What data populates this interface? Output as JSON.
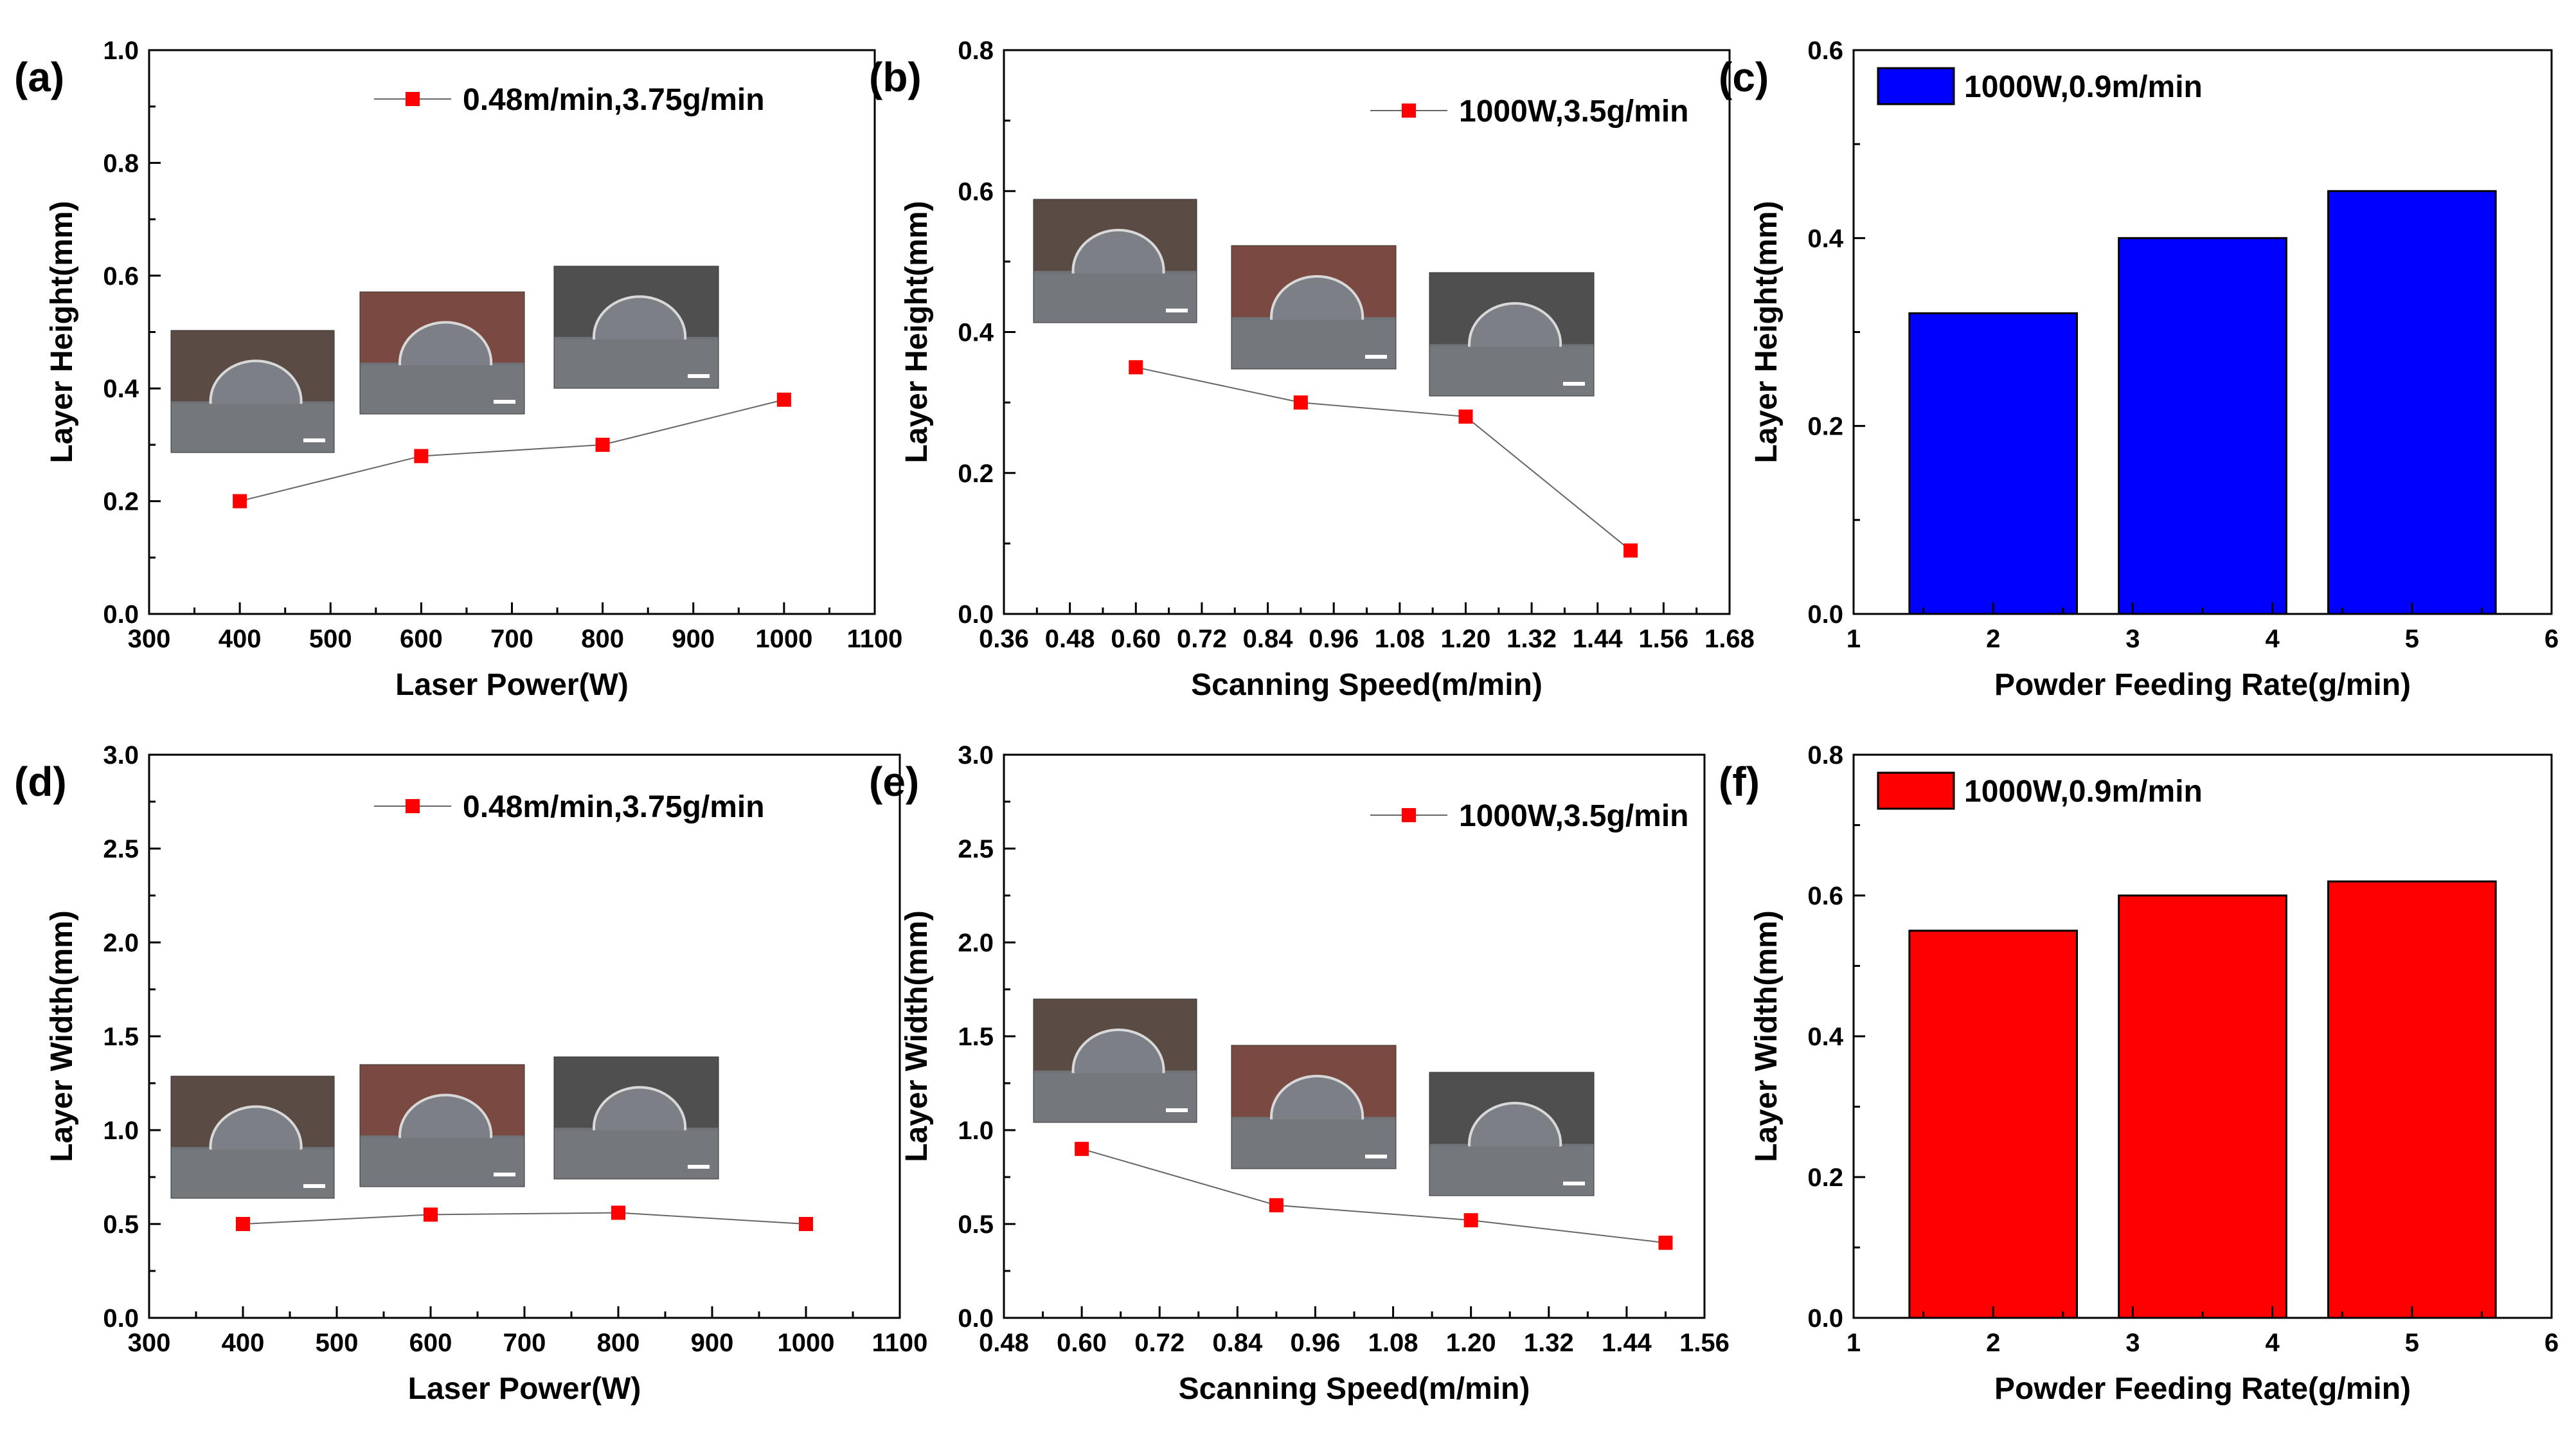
{
  "colors": {
    "marker": "#ff0000",
    "line": "#666666",
    "bar_blue": "#0000ff",
    "bar_red": "#ff0000",
    "axis": "#000000"
  },
  "chart_data": [
    {
      "id": "a",
      "panel_label": "(a)",
      "type": "line",
      "x": [
        400,
        600,
        800,
        1000
      ],
      "y": [
        0.2,
        0.28,
        0.3,
        0.38
      ],
      "series_name": "0.48m/min,3.75g/min",
      "xlabel": "Laser Power(W)",
      "ylabel": "Layer Height(mm)",
      "xlim": [
        300,
        1100
      ],
      "ylim": [
        0,
        1.0
      ],
      "xticks": [
        300,
        400,
        500,
        600,
        700,
        800,
        900,
        1000,
        1100
      ],
      "yticks": [
        0.0,
        0.2,
        0.4,
        0.6,
        0.8,
        1.0
      ],
      "xdec": 0,
      "ydec": 1,
      "legend_position": "top-right",
      "insets": [
        "micrograph-cross-section",
        "micrograph-cross-section",
        "micrograph-cross-section"
      ]
    },
    {
      "id": "b",
      "panel_label": "(b)",
      "type": "line",
      "x": [
        0.6,
        0.9,
        1.2,
        1.5
      ],
      "y": [
        0.35,
        0.3,
        0.28,
        0.09
      ],
      "series_name": "1000W,3.5g/min",
      "xlabel": "Scanning Speed(m/min)",
      "ylabel": "Layer Height(mm)",
      "xlim": [
        0.36,
        1.68
      ],
      "ylim": [
        0,
        0.8
      ],
      "xticks": [
        0.36,
        0.48,
        0.6,
        0.72,
        0.84,
        0.96,
        1.08,
        1.2,
        1.32,
        1.44,
        1.56,
        1.68
      ],
      "yticks": [
        0.0,
        0.2,
        0.4,
        0.6,
        0.8
      ],
      "xdec": 2,
      "ydec": 1,
      "legend_position": "top-right",
      "insets": [
        "micrograph-cross-section",
        "micrograph-cross-section",
        "micrograph-cross-section"
      ]
    },
    {
      "id": "c",
      "panel_label": "(c)",
      "type": "bar",
      "x": [
        2,
        3.5,
        5
      ],
      "y": [
        0.32,
        0.4,
        0.45
      ],
      "bar_half_width": 0.6,
      "series_name": "1000W,0.9m/min",
      "color": "#0000ff",
      "xlabel": "Powder Feeding Rate(g/min)",
      "ylabel": "Layer Height(mm)",
      "xlim": [
        1,
        6
      ],
      "ylim": [
        0,
        0.6
      ],
      "xticks": [
        1,
        2,
        3,
        4,
        5,
        6
      ],
      "yticks": [
        0.0,
        0.2,
        0.4,
        0.6
      ],
      "xdec": 0,
      "ydec": 1,
      "legend_position": "top-left"
    },
    {
      "id": "d",
      "panel_label": "(d)",
      "type": "line",
      "x": [
        400,
        600,
        800,
        1000
      ],
      "y": [
        0.5,
        0.55,
        0.56,
        0.5
      ],
      "series_name": "0.48m/min,3.75g/min",
      "xlabel": "Laser Power(W)",
      "ylabel": "Layer Width(mm)",
      "xlim": [
        300,
        1100
      ],
      "ylim": [
        0,
        3.0
      ],
      "xticks": [
        300,
        400,
        500,
        600,
        700,
        800,
        900,
        1000,
        1100
      ],
      "yticks": [
        0.0,
        0.5,
        1.0,
        1.5,
        2.0,
        2.5,
        3.0
      ],
      "xdec": 0,
      "ydec": 1,
      "legend_position": "top-right",
      "insets": [
        "micrograph-cross-section",
        "micrograph-cross-section",
        "micrograph-cross-section"
      ]
    },
    {
      "id": "e",
      "panel_label": "(e)",
      "type": "line",
      "x": [
        0.6,
        0.9,
        1.2,
        1.5
      ],
      "y": [
        0.9,
        0.6,
        0.52,
        0.4
      ],
      "series_name": "1000W,3.5g/min",
      "xlabel": "Scanning Speed(m/min)",
      "ylabel": "Layer Width(mm)",
      "xlim": [
        0.48,
        1.56
      ],
      "ylim": [
        0,
        3.0
      ],
      "xticks": [
        0.48,
        0.6,
        0.72,
        0.84,
        0.96,
        1.08,
        1.2,
        1.32,
        1.44,
        1.56
      ],
      "yticks": [
        0.0,
        0.5,
        1.0,
        1.5,
        2.0,
        2.5,
        3.0
      ],
      "xdec": 2,
      "ydec": 1,
      "legend_position": "top-right",
      "insets": [
        "micrograph-cross-section",
        "micrograph-cross-section",
        "micrograph-cross-section"
      ]
    },
    {
      "id": "f",
      "panel_label": "(f)",
      "type": "bar",
      "x": [
        2,
        3.5,
        5
      ],
      "y": [
        0.55,
        0.6,
        0.62
      ],
      "bar_half_width": 0.6,
      "series_name": "1000W,0.9m/min",
      "color": "#ff0000",
      "xlabel": "Powder Feeding Rate(g/min)",
      "ylabel": "Layer Width(mm)",
      "xlim": [
        1,
        6
      ],
      "ylim": [
        0,
        0.8
      ],
      "xticks": [
        1,
        2,
        3,
        4,
        5,
        6
      ],
      "yticks": [
        0.0,
        0.2,
        0.4,
        0.6,
        0.8
      ],
      "xdec": 0,
      "ydec": 1,
      "legend_position": "top-left"
    }
  ]
}
